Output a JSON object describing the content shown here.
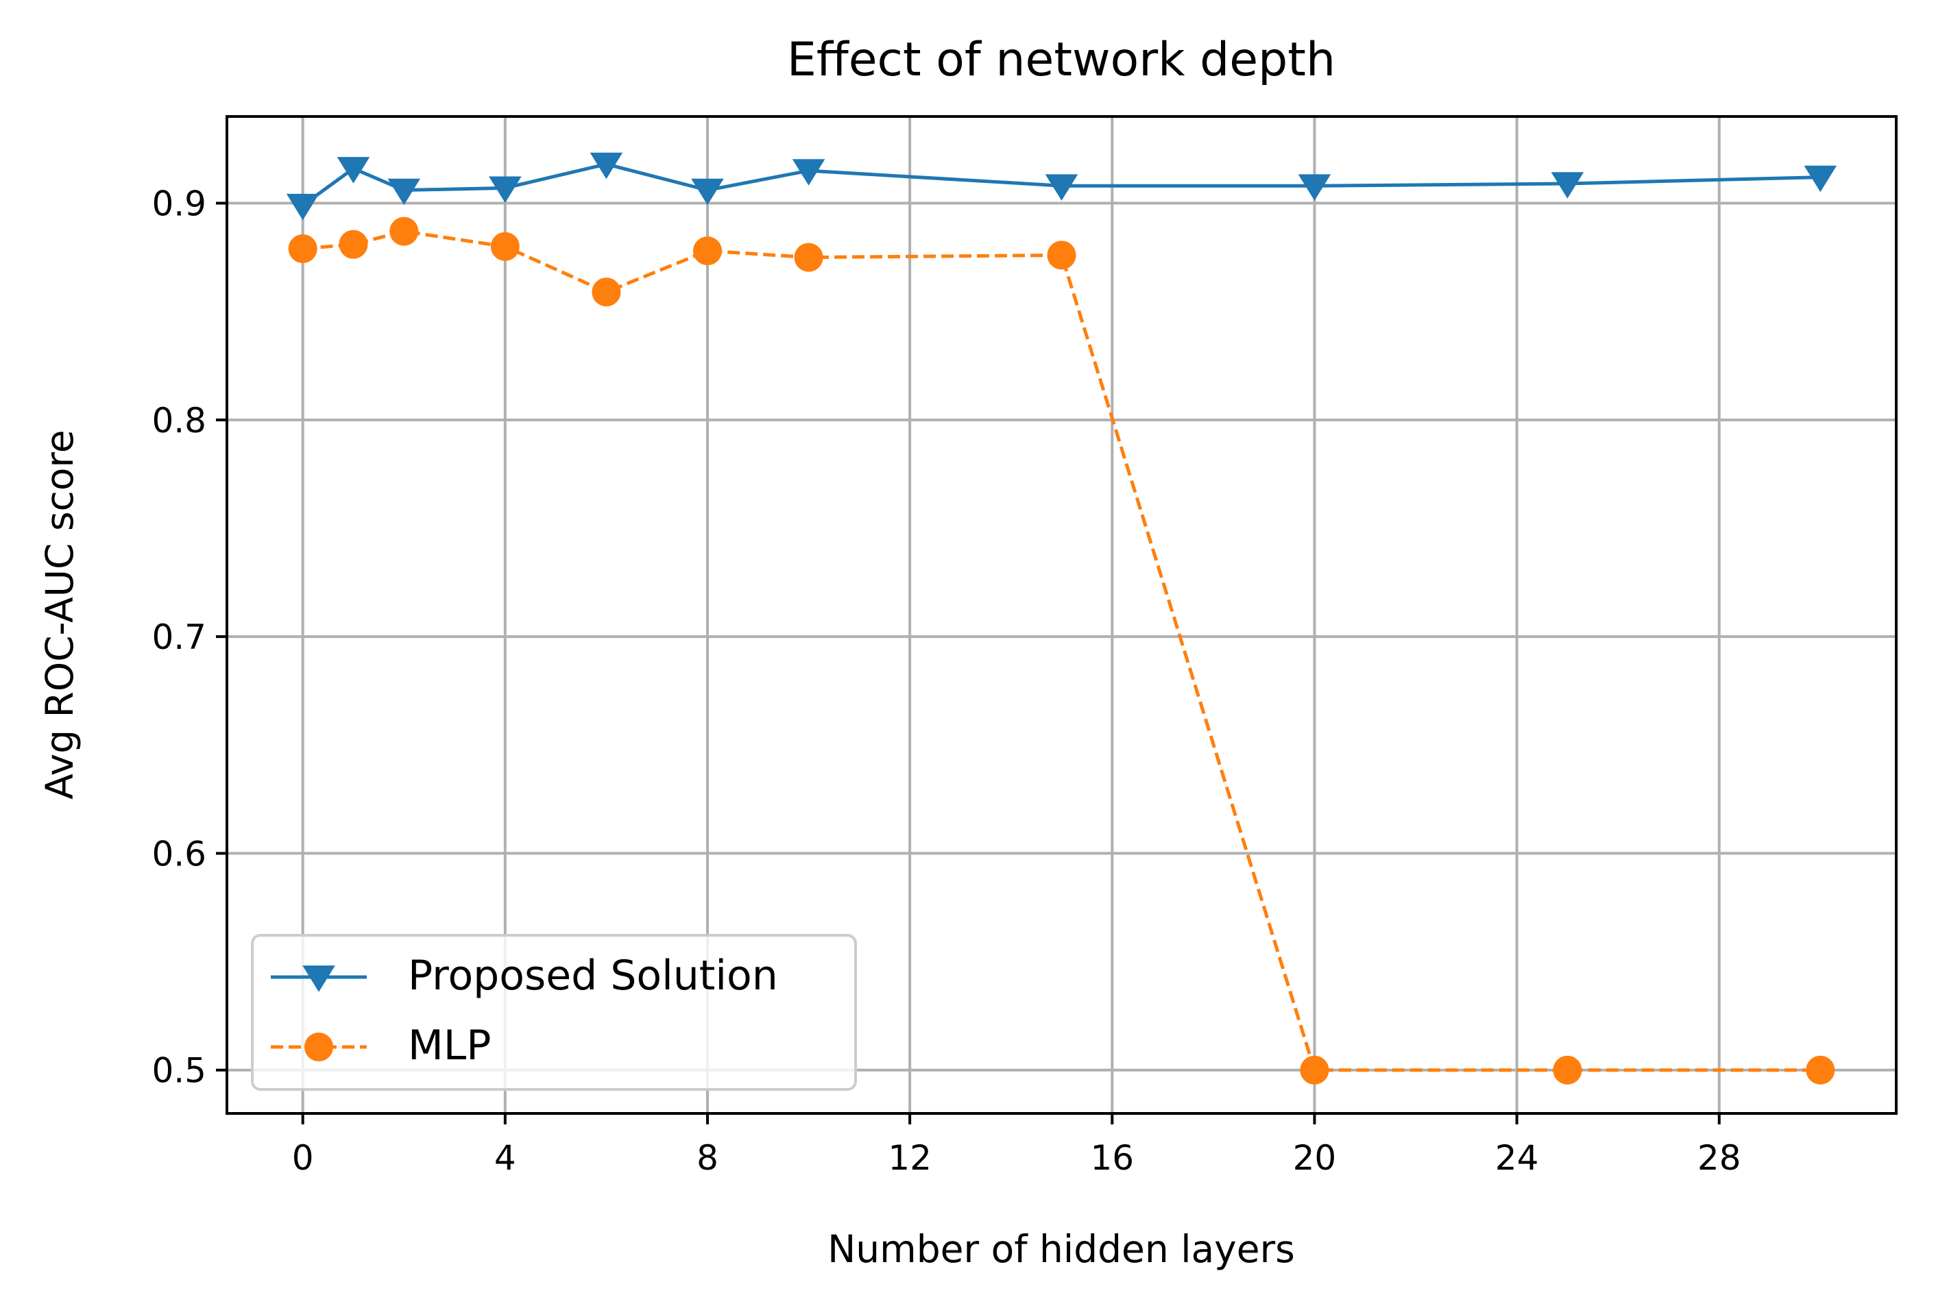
{
  "chart_data": {
    "type": "line",
    "title": "Effect of network depth",
    "xlabel": "Number of hidden layers",
    "ylabel": "Avg ROC-AUC score",
    "xlim": [
      -1.5,
      31.5
    ],
    "ylim": [
      0.48,
      0.94
    ],
    "xticks": [
      0,
      4,
      8,
      12,
      16,
      20,
      24,
      28
    ],
    "yticks": [
      0.5,
      0.6,
      0.7,
      0.8,
      0.9
    ],
    "ytick_labels": [
      "0.5",
      "0.6",
      "0.7",
      "0.8",
      "0.9"
    ],
    "grid": true,
    "legend_position": "lower-left",
    "series": [
      {
        "name": "Proposed Solution",
        "color": "#1f77b4",
        "line_style": "solid",
        "marker": "triangle-down",
        "x": [
          0,
          1,
          2,
          4,
          6,
          8,
          10,
          15,
          20,
          25,
          30
        ],
        "values": [
          0.899,
          0.916,
          0.906,
          0.907,
          0.918,
          0.906,
          0.915,
          0.908,
          0.908,
          0.909,
          0.912
        ]
      },
      {
        "name": "MLP",
        "color": "#ff7f0e",
        "line_style": "dashed",
        "marker": "circle",
        "x": [
          0,
          1,
          2,
          4,
          6,
          8,
          10,
          15,
          20,
          25,
          30
        ],
        "values": [
          0.879,
          0.881,
          0.887,
          0.88,
          0.859,
          0.878,
          0.875,
          0.876,
          0.5,
          0.5,
          0.5
        ]
      }
    ]
  }
}
